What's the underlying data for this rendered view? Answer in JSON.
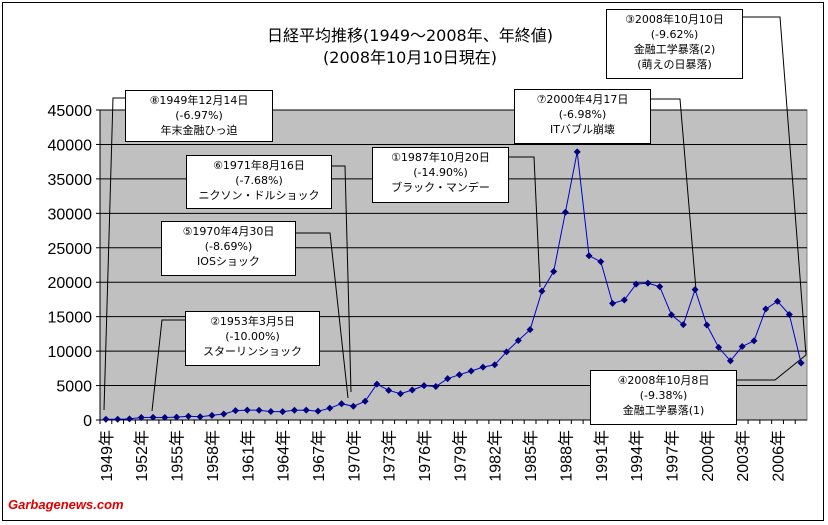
{
  "chart_data": {
    "type": "line",
    "title": "日経平均推移(1949～2008年、年終値)",
    "subtitle": "(2008年10月10日現在)",
    "ylim": [
      0,
      45000
    ],
    "yticks": [
      0,
      5000,
      10000,
      15000,
      20000,
      25000,
      30000,
      35000,
      40000,
      45000
    ],
    "grid": true,
    "marker": "diamond",
    "colors": {
      "line": "#0000cc",
      "marker": "#000080",
      "plot_bg": "#c0c0c0"
    },
    "x_tick_labels": [
      "1949年",
      "1952年",
      "1955年",
      "1958年",
      "1961年",
      "1964年",
      "1967年",
      "1970年",
      "1973年",
      "1976年",
      "1979年",
      "1982年",
      "1985年",
      "1988年",
      "1991年",
      "1994年",
      "1997年",
      "2000年",
      "2003年",
      "2006年"
    ],
    "x": [
      1949,
      1950,
      1951,
      1952,
      1953,
      1954,
      1955,
      1956,
      1957,
      1958,
      1959,
      1960,
      1961,
      1962,
      1963,
      1964,
      1965,
      1966,
      1967,
      1968,
      1969,
      1970,
      1971,
      1972,
      1973,
      1974,
      1975,
      1976,
      1977,
      1978,
      1979,
      1980,
      1981,
      1982,
      1983,
      1984,
      1985,
      1986,
      1987,
      1988,
      1989,
      1990,
      1991,
      1992,
      1993,
      1994,
      1995,
      1996,
      1997,
      1998,
      1999,
      2000,
      2001,
      2002,
      2003,
      2004,
      2005,
      2006,
      2007,
      2008
    ],
    "series": [
      {
        "values": [
          109,
          102,
          166,
          362,
          377,
          356,
          425,
          549,
          474,
          666,
          874,
          1357,
          1432,
          1421,
          1226,
          1217,
          1418,
          1432,
          1284,
          1715,
          2359,
          1987,
          2714,
          5208,
          4306,
          3817,
          4359,
          4991,
          4866,
          6002,
          6570,
          7116,
          7682,
          8017,
          9894,
          11543,
          13113,
          18701,
          21564,
          30159,
          38916,
          23849,
          22984,
          16925,
          17417,
          19723,
          19868,
          19361,
          15259,
          13842,
          18934,
          13786,
          10543,
          8579,
          10677,
          11489,
          16111,
          17226,
          15308,
          8277
        ]
      }
    ],
    "annotations": [
      {
        "id": "a1",
        "lines": [
          "①1987年10月20日",
          "(-14.90%)",
          "ブラック・マンデー"
        ],
        "year": 1987
      },
      {
        "id": "a2",
        "lines": [
          "②1953年3月5日",
          "(-10.00%)",
          "スターリンショック"
        ],
        "year": 1953
      },
      {
        "id": "a3",
        "lines": [
          "③2008年10月10日",
          "(-9.62%)",
          "金融工学暴落(2)",
          "(萌えの日暴落)"
        ],
        "year": 2008
      },
      {
        "id": "a4",
        "lines": [
          "④2008年10月8日",
          "(-9.38%)",
          "金融工学暴落(1)"
        ],
        "year": 2008
      },
      {
        "id": "a5",
        "lines": [
          "⑤1970年4月30日",
          "(-8.69%)",
          "IOSショック"
        ],
        "year": 1970
      },
      {
        "id": "a6",
        "lines": [
          "⑥1971年8月16日",
          "(-7.68%)",
          "ニクソン・ドルショック"
        ],
        "year": 1971
      },
      {
        "id": "a7",
        "lines": [
          "⑦2000年4月17日",
          "(-6.98%)",
          "ITバブル崩壊"
        ],
        "year": 2000
      },
      {
        "id": "a8",
        "lines": [
          "⑧1949年12月14日",
          "(-6.97%)",
          "年末金融ひっ迫"
        ],
        "year": 1949
      }
    ]
  },
  "credit": "Garbagenews.com"
}
